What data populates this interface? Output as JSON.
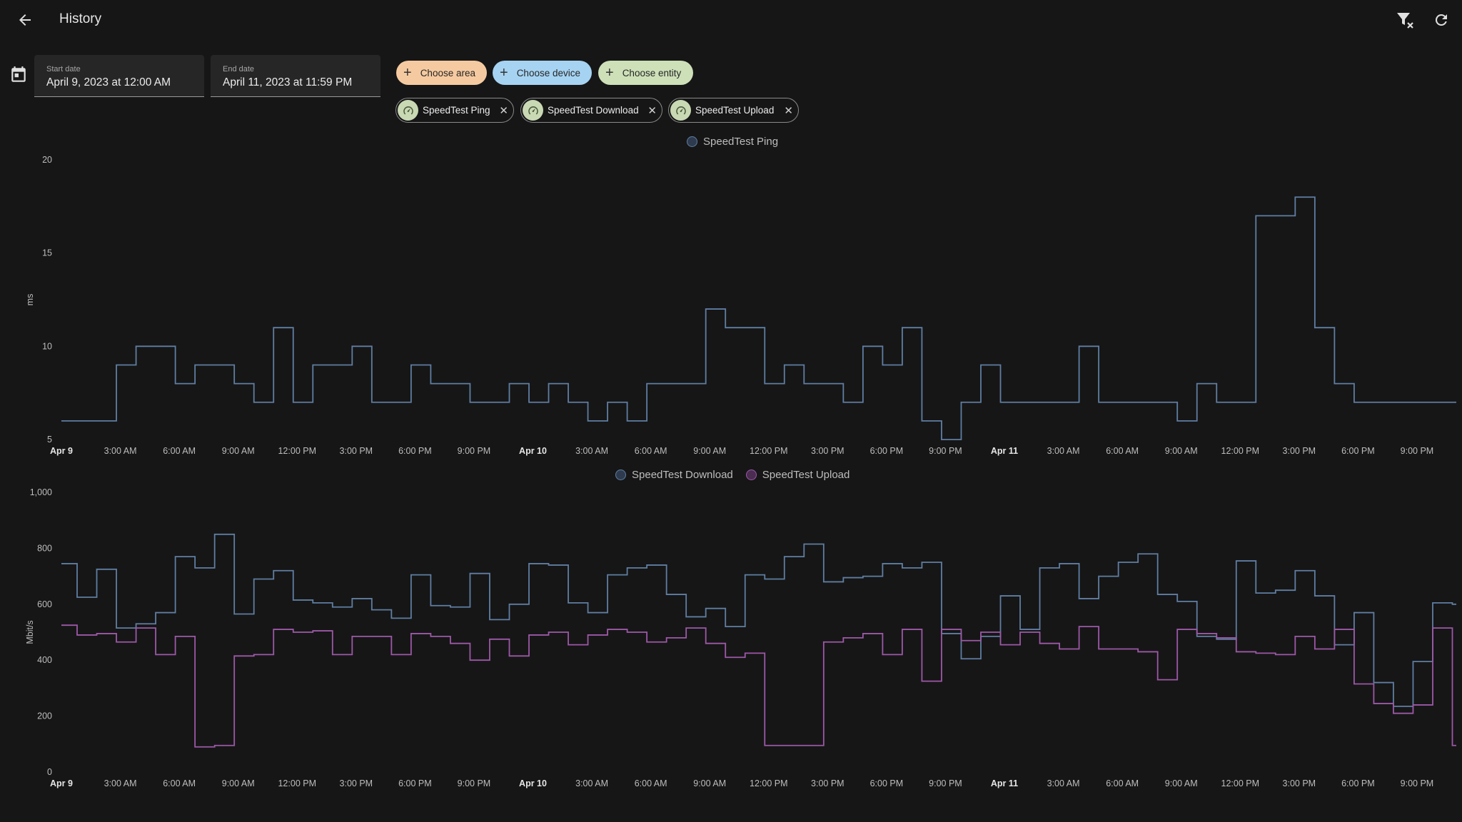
{
  "header": {
    "title": "History"
  },
  "date_range": {
    "start_label": "Start date",
    "start_value": "April 9, 2023 at 12:00 AM",
    "end_label": "End date",
    "end_value": "April 11, 2023 at 11:59 PM"
  },
  "pickers": {
    "area": "Choose area",
    "device": "Choose device",
    "entity": "Choose entity"
  },
  "chips": [
    "SpeedTest Ping",
    "SpeedTest Download",
    "SpeedTest Upload"
  ],
  "colors": {
    "background": "#161616",
    "ping": "#5f7ea3",
    "download": "#5f7ea3",
    "upload": "#9d58a8",
    "area_picker": "#f6caa0",
    "device_picker": "#a6d3f2",
    "entity_picker": "#cde0b8",
    "chip_avatar": "#c8d9b4"
  },
  "chart_data": [
    {
      "type": "line",
      "step": true,
      "ylabel": "ms",
      "ylim": [
        5,
        20
      ],
      "yticks": [
        "20",
        "15",
        "10",
        "5"
      ],
      "xticks": [
        "Apr 9",
        "3:00 AM",
        "6:00 AM",
        "9:00 AM",
        "12:00 PM",
        "3:00 PM",
        "6:00 PM",
        "9:00 PM",
        "Apr 10",
        "3:00 AM",
        "6:00 AM",
        "9:00 AM",
        "12:00 PM",
        "3:00 PM",
        "6:00 PM",
        "9:00 PM",
        "Apr 11",
        "3:00 AM",
        "6:00 AM",
        "9:00 AM",
        "12:00 PM",
        "3:00 PM",
        "6:00 PM",
        "9:00 PM"
      ],
      "xlim_hours": [
        0,
        71
      ],
      "legend": "top-center",
      "series": [
        {
          "name": "SpeedTest Ping",
          "color": "#5f7ea3",
          "x": [
            0,
            2.8,
            3.8,
            5.8,
            6.8,
            8.8,
            9.8,
            10.8,
            11.8,
            12.8,
            14.8,
            15.8,
            17.8,
            18.8,
            19.8,
            20.8,
            22.8,
            23.8,
            24.8,
            25.8,
            26.8,
            27.8,
            28.8,
            29.8,
            30.8,
            31.8,
            32.8,
            33.8,
            35.8,
            36.8,
            37.8,
            39.8,
            40.8,
            41.8,
            42.8,
            43.8,
            44.8,
            45.8,
            46.8,
            47.8,
            48.8,
            49.8,
            50.8,
            51.8,
            52.8,
            53.8,
            54.8,
            55.8,
            56.8,
            57.8,
            58.8,
            59.8,
            60.8,
            61.8,
            62.8,
            63.8,
            64.8,
            65.8,
            66.8,
            67.8,
            68.8,
            69.8,
            70.8
          ],
          "values": [
            6,
            9,
            10,
            8,
            9,
            8,
            7,
            11,
            7,
            9,
            10,
            7,
            9,
            8,
            8,
            7,
            8,
            7,
            8,
            7,
            6,
            7,
            6,
            8,
            8,
            8,
            12,
            11,
            8,
            9,
            8,
            7,
            10,
            9,
            11,
            6,
            5,
            7,
            9,
            7,
            7,
            7,
            7,
            10,
            7,
            7,
            7,
            7,
            6,
            8,
            7,
            7,
            17,
            17,
            18,
            11,
            8,
            7,
            7,
            7,
            7,
            7,
            7
          ]
        }
      ]
    },
    {
      "type": "line",
      "step": true,
      "ylabel": "Mbit/s",
      "ylim": [
        0,
        1000
      ],
      "yticks": [
        "1,000",
        "800",
        "600",
        "400",
        "200",
        "0"
      ],
      "xticks": [
        "Apr 9",
        "3:00 AM",
        "6:00 AM",
        "9:00 AM",
        "12:00 PM",
        "3:00 PM",
        "6:00 PM",
        "9:00 PM",
        "Apr 10",
        "3:00 AM",
        "6:00 AM",
        "9:00 AM",
        "12:00 PM",
        "3:00 PM",
        "6:00 PM",
        "9:00 PM",
        "Apr 11",
        "3:00 AM",
        "6:00 AM",
        "9:00 AM",
        "12:00 PM",
        "3:00 PM",
        "6:00 PM",
        "9:00 PM"
      ],
      "xlim_hours": [
        0,
        71
      ],
      "legend": "top-center",
      "series": [
        {
          "name": "SpeedTest Download",
          "color": "#5f7ea3",
          "x": [
            0,
            0.8,
            1.8,
            2.8,
            3.8,
            4.8,
            5.8,
            6.8,
            7.8,
            8.8,
            9.8,
            10.8,
            11.8,
            12.8,
            13.8,
            14.8,
            15.8,
            16.8,
            17.8,
            18.8,
            19.8,
            20.8,
            21.8,
            22.8,
            23.8,
            24.8,
            25.8,
            26.8,
            27.8,
            28.8,
            29.8,
            30.8,
            31.8,
            32.8,
            33.8,
            34.8,
            35.8,
            36.8,
            37.8,
            38.8,
            39.8,
            40.8,
            41.8,
            42.8,
            43.8,
            44.8,
            45.8,
            46.8,
            47.8,
            48.8,
            49.8,
            50.8,
            51.8,
            52.8,
            53.8,
            54.8,
            55.8,
            56.8,
            57.8,
            58.8,
            59.8,
            60.8,
            61.8,
            62.8,
            63.8,
            64.8,
            65.8,
            66.8,
            67.8,
            68.8,
            69.8,
            70.8
          ],
          "values": [
            745,
            625,
            725,
            515,
            530,
            570,
            770,
            730,
            850,
            565,
            690,
            720,
            615,
            605,
            590,
            620,
            580,
            550,
            705,
            595,
            590,
            710,
            545,
            600,
            745,
            740,
            605,
            570,
            705,
            730,
            740,
            635,
            555,
            585,
            520,
            705,
            690,
            770,
            815,
            680,
            695,
            700,
            745,
            730,
            750,
            495,
            405,
            485,
            630,
            510,
            730,
            745,
            620,
            700,
            750,
            780,
            635,
            610,
            485,
            475,
            755,
            640,
            650,
            720,
            630,
            455,
            570,
            320,
            235,
            395,
            605,
            600
          ]
        },
        {
          "name": "SpeedTest Upload",
          "color": "#9d58a8",
          "x": [
            0,
            0.8,
            1.8,
            2.8,
            3.8,
            4.8,
            5.8,
            6.8,
            7.8,
            8.8,
            9.8,
            10.8,
            11.8,
            12.8,
            13.8,
            14.8,
            15.8,
            16.8,
            17.8,
            18.8,
            19.8,
            20.8,
            21.8,
            22.8,
            23.8,
            24.8,
            25.8,
            26.8,
            27.8,
            28.8,
            29.8,
            30.8,
            31.8,
            32.8,
            33.8,
            34.8,
            35.8,
            36.8,
            37.8,
            38.8,
            39.8,
            40.8,
            41.8,
            42.8,
            43.8,
            44.8,
            45.8,
            46.8,
            47.8,
            48.8,
            49.8,
            50.8,
            51.8,
            52.8,
            53.8,
            54.8,
            55.8,
            56.8,
            57.8,
            58.8,
            59.8,
            60.8,
            61.8,
            62.8,
            63.8,
            64.8,
            65.8,
            66.8,
            67.8,
            68.8,
            69.8,
            70.8
          ],
          "values": [
            525,
            490,
            495,
            465,
            515,
            420,
            485,
            90,
            95,
            415,
            420,
            510,
            500,
            505,
            420,
            485,
            485,
            420,
            495,
            485,
            460,
            400,
            475,
            415,
            490,
            500,
            455,
            490,
            510,
            500,
            465,
            480,
            515,
            460,
            410,
            425,
            95,
            95,
            95,
            465,
            480,
            495,
            420,
            510,
            325,
            510,
            470,
            500,
            455,
            500,
            460,
            440,
            520,
            440,
            440,
            430,
            330,
            510,
            495,
            480,
            430,
            425,
            420,
            485,
            440,
            510,
            315,
            245,
            210,
            240,
            515,
            95
          ]
        }
      ]
    }
  ]
}
